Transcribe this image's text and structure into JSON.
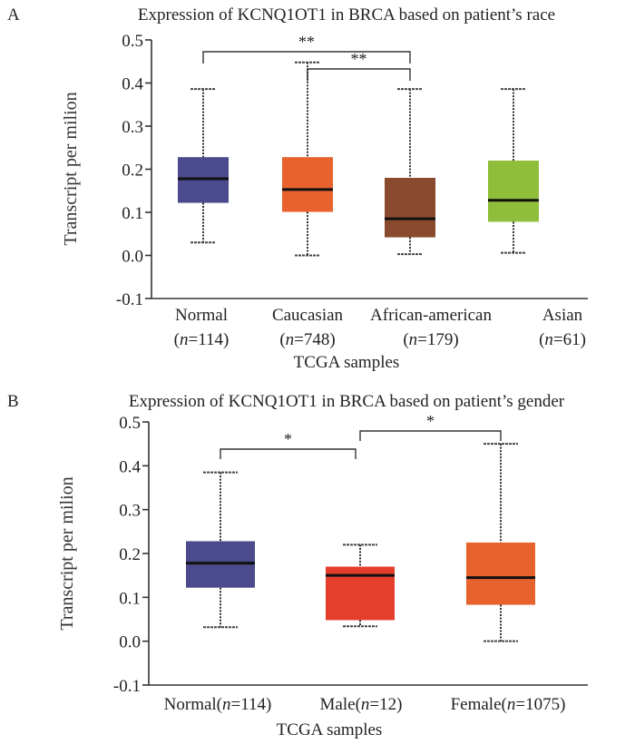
{
  "chart_data": [
    {
      "type": "box",
      "panel": "A",
      "title": "Expression of KCNQ1OT1 in BRCA based on patient’s race",
      "xlabel": "TCGA samples",
      "ylabel": "Transcript per milion",
      "ylim": [
        -0.1,
        0.5
      ],
      "yticks": [
        "0.5",
        "0.4",
        "0.3",
        "0.2",
        "0.1",
        "0.0",
        "-0.1"
      ],
      "ytick_values": [
        0.5,
        0.4,
        0.3,
        0.2,
        0.1,
        0.0,
        -0.1
      ],
      "grid": false,
      "categories": [
        {
          "name": "Normal",
          "n": "114",
          "color": "#4a4a8c",
          "whisker_low": 0.03,
          "q1": 0.122,
          "median": 0.178,
          "q3": 0.228,
          "whisker_high": 0.386
        },
        {
          "name": "Caucasian",
          "n": "748",
          "color": "#e8622e",
          "whisker_low": 0.0,
          "q1": 0.101,
          "median": 0.153,
          "q3": 0.228,
          "whisker_high": 0.448
        },
        {
          "name": "African-american",
          "n": "179",
          "color": "#8a4a2e",
          "whisker_low": 0.003,
          "q1": 0.042,
          "median": 0.085,
          "q3": 0.18,
          "whisker_high": 0.386
        },
        {
          "name": "Asian",
          "n": "61",
          "color": "#8fbe3a",
          "whisker_low": 0.006,
          "q1": 0.078,
          "median": 0.128,
          "q3": 0.22,
          "whisker_high": 0.386
        }
      ],
      "significance": [
        {
          "from": 0,
          "to": 2,
          "label": "**"
        },
        {
          "from": 1,
          "to": 2,
          "label": "**"
        }
      ]
    },
    {
      "type": "box",
      "panel": "B",
      "title": "Expression of KCNQ1OT1 in BRCA based on patient’s gender",
      "xlabel": "TCGA samples",
      "ylabel": "Transcript per milion",
      "ylim": [
        -0.1,
        0.5
      ],
      "yticks": [
        "0.5",
        "0.4",
        "0.3",
        "0.2",
        "0.1",
        "0.0",
        "-0.1"
      ],
      "ytick_values": [
        0.5,
        0.4,
        0.3,
        0.2,
        0.1,
        0.0,
        -0.1
      ],
      "grid": false,
      "categories": [
        {
          "name": "Normal",
          "n": "114",
          "color": "#4a4a8c",
          "whisker_low": 0.032,
          "q1": 0.122,
          "median": 0.178,
          "q3": 0.228,
          "whisker_high": 0.385
        },
        {
          "name": "Male",
          "n": "12",
          "color": "#e43e2c",
          "whisker_low": 0.034,
          "q1": 0.048,
          "median": 0.15,
          "q3": 0.17,
          "whisker_high": 0.22
        },
        {
          "name": "Female",
          "n": "1075",
          "color": "#e8622e",
          "whisker_low": 0.0,
          "q1": 0.083,
          "median": 0.145,
          "q3": 0.225,
          "whisker_high": 0.45
        }
      ],
      "significance": [
        {
          "from": 0,
          "to": 1,
          "label": "*"
        },
        {
          "from": 1,
          "to": 2,
          "label": "*"
        }
      ]
    }
  ]
}
